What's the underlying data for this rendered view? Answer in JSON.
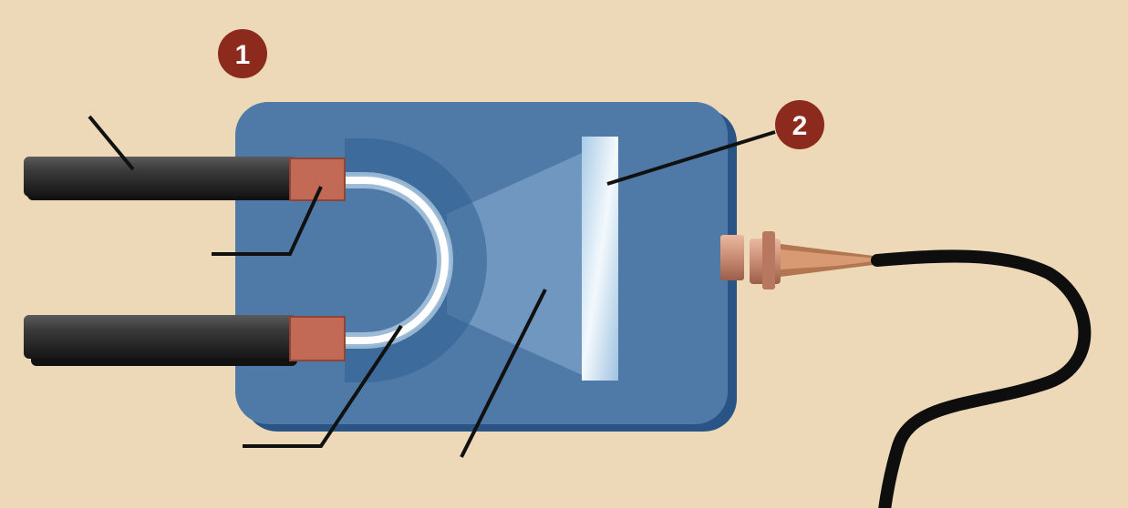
{
  "colors": {
    "background": "#edd9b8",
    "housing": "#4f7aa8",
    "housing_shadow": "#2a5486",
    "cable": "#2b2b2b",
    "electrode": "#c26a55",
    "glow": "#ffffff",
    "window": "#cfe4f3",
    "badge": "#8c2a1e",
    "leader_line": "#111111"
  },
  "badges": [
    {
      "label": "1"
    },
    {
      "label": "2"
    }
  ]
}
